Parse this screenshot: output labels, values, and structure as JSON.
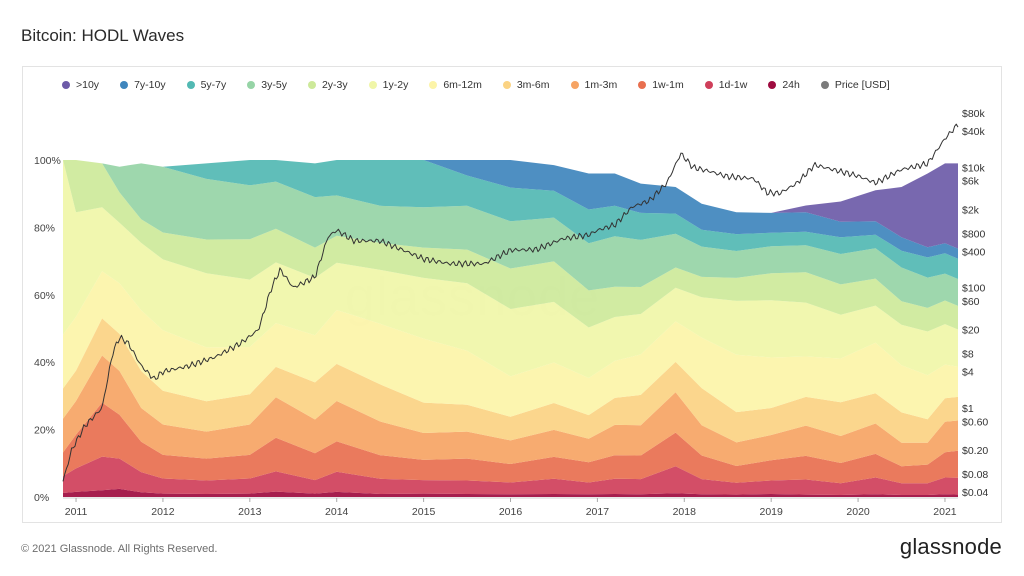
{
  "title": "Bitcoin: HODL Waves",
  "legend": [
    {
      "label": ">10y",
      "color": "#6d5ba8"
    },
    {
      "label": "7y-10y",
      "color": "#3f86bd"
    },
    {
      "label": "5y-7y",
      "color": "#52b9b3"
    },
    {
      "label": "3y-5y",
      "color": "#96d4a6"
    },
    {
      "label": "2y-3y",
      "color": "#cde99a"
    },
    {
      "label": "1y-2y",
      "color": "#f0f6a8"
    },
    {
      "label": "6m-12m",
      "color": "#fcf4a8"
    },
    {
      "label": "3m-6m",
      "color": "#fbd383"
    },
    {
      "label": "1m-3m",
      "color": "#f6a464"
    },
    {
      "label": "1w-1m",
      "color": "#e86f4f"
    },
    {
      "label": "1d-1w",
      "color": "#cf3f5a"
    },
    {
      "label": "24h",
      "color": "#9e0b3f"
    },
    {
      "label": "Price [USD]",
      "color": "#7b7b7b"
    }
  ],
  "footer": {
    "copyright": "© 2021 Glassnode. All Rights Reserved.",
    "logo": "glassnode"
  },
  "watermark": "glassnode",
  "chart_data": {
    "type": "area",
    "stacked": true,
    "grid": false,
    "legend_position": "top",
    "x_ticks": [
      "2011",
      "2012",
      "2013",
      "2014",
      "2015",
      "2016",
      "2017",
      "2018",
      "2019",
      "2020",
      "2021"
    ],
    "x_range": [
      2010.85,
      2021.15
    ],
    "y_left_ticks": [
      "0%",
      "20%",
      "40%",
      "60%",
      "80%",
      "100%"
    ],
    "y_left_range": [
      0,
      100
    ],
    "y_right_ticks": [
      "$0.04",
      "$0.08",
      "$0.20",
      "$0.60",
      "$1",
      "$4",
      "$8",
      "$20",
      "$60",
      "$100",
      "$400",
      "$800",
      "$2k",
      "$6k",
      "$10k",
      "$40k",
      "$80k"
    ],
    "y_right_values": [
      0.04,
      0.08,
      0.2,
      0.6,
      1,
      4,
      8,
      20,
      60,
      100,
      400,
      800,
      2000,
      6000,
      10000,
      40000,
      80000
    ],
    "y_right_scale": "log",
    "x": [
      2010.85,
      2011.0,
      2011.3,
      2011.5,
      2011.75,
      2012.0,
      2012.5,
      2013.0,
      2013.3,
      2013.75,
      2014.0,
      2014.5,
      2015.0,
      2015.5,
      2016.0,
      2016.5,
      2016.9,
      2017.2,
      2017.5,
      2017.9,
      2018.2,
      2018.6,
      2019.0,
      2019.4,
      2019.8,
      2020.2,
      2020.5,
      2020.8,
      2021.0,
      2021.15
    ],
    "series": [
      {
        "name": "24h",
        "values": [
          1.2,
          1.5,
          2.0,
          2.4,
          1.4,
          1.0,
          0.9,
          1.0,
          1.6,
          1.0,
          1.5,
          0.9,
          1.0,
          0.9,
          0.8,
          0.9,
          0.8,
          0.9,
          0.8,
          1.1,
          0.8,
          0.7,
          0.9,
          0.7,
          0.6,
          0.8,
          0.6,
          0.6,
          0.8,
          0.7
        ]
      },
      {
        "name": "1d-1w",
        "values": [
          5,
          7,
          10,
          9,
          6,
          4.5,
          4,
          4.5,
          6,
          4,
          6,
          4.5,
          4,
          4,
          3.5,
          4.5,
          3.5,
          4.5,
          4.5,
          8,
          4.5,
          3.5,
          4,
          4.5,
          3.5,
          5,
          3.5,
          3.5,
          5,
          5
        ]
      },
      {
        "name": "1w-1m",
        "values": [
          7,
          10,
          16,
          13,
          9,
          7,
          6.5,
          7,
          10,
          8,
          9,
          7,
          6,
          6.5,
          5.5,
          6.5,
          6,
          7,
          7,
          10,
          7,
          5,
          6,
          7,
          6,
          7,
          5,
          5.5,
          7.5,
          8
        ]
      },
      {
        "name": "1m-3m",
        "values": [
          10,
          10,
          14,
          13,
          10,
          9,
          8,
          9,
          12,
          10,
          12,
          10,
          8,
          8,
          7,
          8,
          7,
          9,
          9,
          12,
          9,
          7,
          7.5,
          9,
          8,
          9,
          7,
          6.5,
          9,
          9
        ]
      },
      {
        "name": "3m-6m",
        "values": [
          9,
          9,
          11,
          11,
          11,
          10,
          9,
          9,
          9,
          11,
          11,
          11,
          9,
          8,
          7,
          8,
          7,
          8,
          9,
          9,
          11,
          9,
          8,
          8.5,
          10,
          9,
          9,
          7,
          7,
          7
        ]
      },
      {
        "name": "6m-12m",
        "values": [
          16,
          16,
          14,
          15,
          18,
          18,
          16,
          14,
          13,
          14,
          16,
          18,
          19,
          16,
          12,
          12,
          11,
          11,
          12,
          12,
          15,
          17,
          15,
          12,
          13,
          15,
          14,
          13,
          10,
          9
        ]
      },
      {
        "name": "1y-2y",
        "values": [
          51.8,
          31,
          19,
          18,
          20,
          21,
          22,
          20,
          18,
          17,
          14,
          16,
          18,
          20,
          20,
          18,
          15,
          13,
          12,
          10,
          12,
          16,
          17,
          16,
          13,
          11,
          12,
          13,
          12,
          11
        ]
      },
      {
        "name": "2y-3y",
        "values": [
          0,
          15.5,
          13,
          9,
          7,
          8,
          10,
          12,
          10,
          9,
          8,
          8,
          9,
          10,
          12,
          12,
          11,
          9,
          8,
          6,
          6,
          6.8,
          8,
          9,
          9,
          8,
          7,
          7,
          7,
          7
        ]
      },
      {
        "name": "3y-5y",
        "values": [
          0,
          0,
          0,
          7.6,
          16.6,
          19.5,
          18,
          16,
          14,
          15,
          12,
          11,
          12,
          13,
          14,
          13,
          14,
          15,
          14,
          10,
          9,
          8,
          8,
          8,
          9,
          9,
          10,
          9,
          8,
          8
        ]
      },
      {
        "name": "5y-7y",
        "values": [
          0,
          0,
          0,
          0,
          0,
          0,
          4.6,
          7.5,
          6.4,
          10,
          10.5,
          13.6,
          14,
          9,
          10,
          8,
          10,
          9,
          8,
          6,
          5,
          5,
          4,
          4,
          5,
          4,
          5,
          6,
          6,
          6
        ]
      },
      {
        "name": "7y-10y",
        "values": [
          0,
          0,
          0,
          0,
          0,
          0,
          0,
          0,
          0,
          0,
          0,
          0,
          0,
          4.6,
          8.5,
          7.6,
          10.7,
          9.6,
          8.7,
          7.9,
          7.7,
          6.5,
          5.9,
          5.8,
          4.6,
          4,
          4,
          3,
          3,
          3
        ]
      },
      {
        "name": ">10y",
        "values": [
          0,
          0,
          0,
          0,
          0,
          0,
          0,
          0,
          0,
          0,
          0,
          0,
          0,
          0,
          0,
          0,
          0,
          0,
          0,
          0,
          0,
          0,
          0,
          2,
          6,
          9.2,
          14.9,
          21.9,
          23.7,
          25.3
        ]
      }
    ],
    "price": {
      "name": "Price [USD]",
      "x": [
        2010.85,
        2010.95,
        2011.1,
        2011.3,
        2011.42,
        2011.5,
        2011.6,
        2011.75,
        2011.9,
        2012.0,
        2012.3,
        2012.6,
        2012.9,
        2013.1,
        2013.25,
        2013.35,
        2013.5,
        2013.75,
        2013.9,
        2014.0,
        2014.2,
        2014.5,
        2014.8,
        2015.0,
        2015.3,
        2015.7,
        2016.0,
        2016.3,
        2016.6,
        2016.9,
        2017.0,
        2017.2,
        2017.4,
        2017.6,
        2017.8,
        2017.96,
        2018.1,
        2018.3,
        2018.5,
        2018.8,
        2018.95,
        2019.1,
        2019.3,
        2019.5,
        2019.8,
        2020.0,
        2020.2,
        2020.5,
        2020.8,
        2021.0,
        2021.15
      ],
      "values": [
        0.06,
        0.2,
        0.5,
        1,
        8,
        15,
        12,
        5,
        3,
        4,
        5,
        7,
        12,
        20,
        100,
        200,
        100,
        150,
        700,
        900,
        600,
        600,
        400,
        300,
        250,
        250,
        420,
        430,
        650,
        750,
        900,
        1100,
        2200,
        2800,
        5500,
        17000,
        10000,
        8500,
        7000,
        6500,
        3800,
        3700,
        5500,
        11000,
        8500,
        7200,
        5500,
        9200,
        11500,
        30000,
        52000
      ]
    }
  }
}
